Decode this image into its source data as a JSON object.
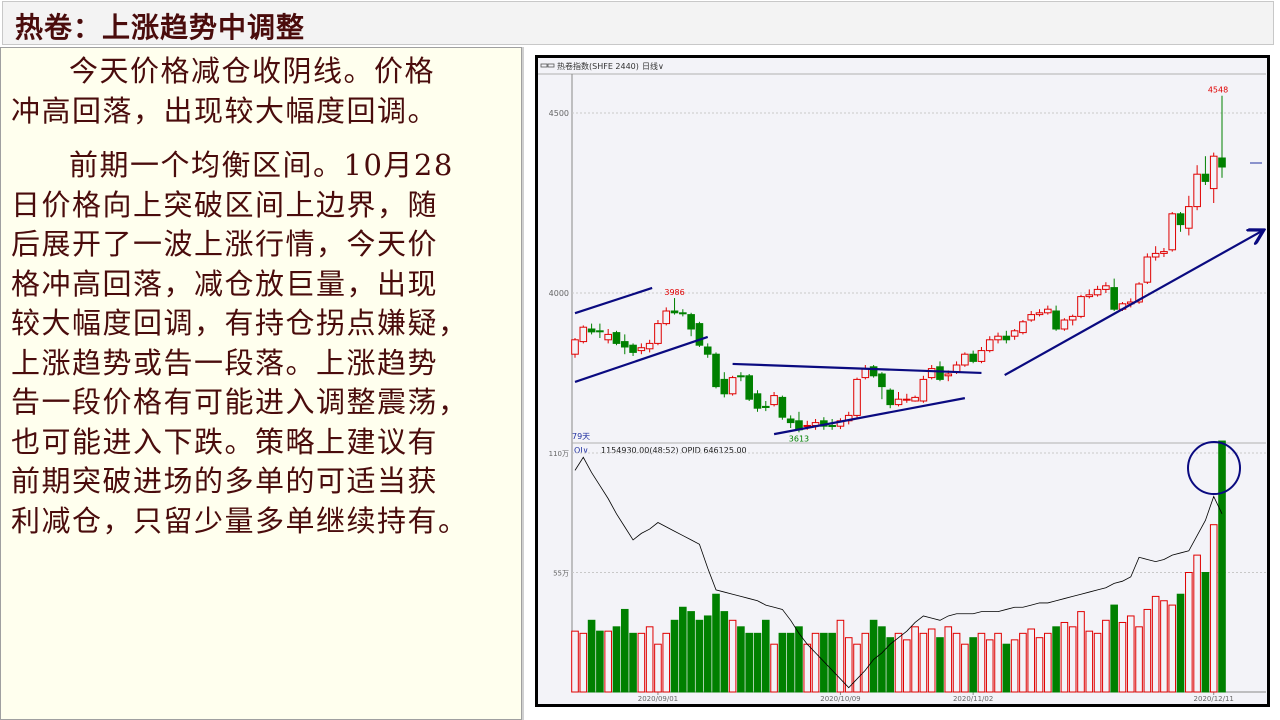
{
  "title": "热卷：上涨趋势中调整",
  "paragraphs": [
    {
      "lines": [
        "今天价格减仓收阴线。价格",
        "冲高回落，出现较大幅度回调。"
      ]
    },
    {
      "lines": [
        "前期一个均衡区间。10月28",
        "日价格向上突破区间上边界，随",
        "后展开了一波上涨行情，今天价",
        "格冲高回落，减仓放巨量，出现",
        "较大幅度回调，有持仓拐点嫌疑，",
        "上涨趋势或告一段落。上涨趋势",
        "告一段价格有可能进入调整震荡，",
        "也可能进入下跌。策略上建议有",
        "前期突破进场的多单的可适当获",
        "利减仓，只留少量多单继续持有。"
      ]
    }
  ],
  "chart_toolbar": {
    "instrument": "热卷指数(SHFE 2440)",
    "period": "日线∨"
  },
  "chart_data": {
    "type": "candlestick",
    "price_axis": {
      "ticks": [
        "4500",
        "4000"
      ],
      "tick_values": [
        4500,
        4000
      ]
    },
    "bar_count_label": "79天",
    "annotations": {
      "high_label": "3986",
      "low_label": "3613",
      "top_label": "4548"
    },
    "ohlc_fields": [
      "open",
      "close",
      "high",
      "low"
    ],
    "candles": [
      [
        3830,
        3870,
        3875,
        3820
      ],
      [
        3865,
        3905,
        3910,
        3860
      ],
      [
        3900,
        3892,
        3915,
        3885
      ],
      [
        3895,
        3893,
        3915,
        3875
      ],
      [
        3870,
        3885,
        3900,
        3860
      ],
      [
        3890,
        3860,
        3895,
        3855
      ],
      [
        3865,
        3850,
        3885,
        3830
      ],
      [
        3855,
        3835,
        3860,
        3825
      ],
      [
        3840,
        3848,
        3860,
        3830
      ],
      [
        3845,
        3860,
        3870,
        3835
      ],
      [
        3860,
        3915,
        3925,
        3855
      ],
      [
        3915,
        3950,
        3960,
        3910
      ],
      [
        3950,
        3945,
        3986,
        3940
      ],
      [
        3945,
        3943,
        3955,
        3935
      ],
      [
        3940,
        3900,
        3945,
        3880
      ],
      [
        3915,
        3855,
        3920,
        3850
      ],
      [
        3850,
        3830,
        3860,
        3820
      ],
      [
        3830,
        3740,
        3835,
        3735
      ],
      [
        3760,
        3720,
        3780,
        3710
      ],
      [
        3720,
        3765,
        3770,
        3715
      ],
      [
        3770,
        3768,
        3780,
        3755
      ],
      [
        3770,
        3705,
        3775,
        3700
      ],
      [
        3720,
        3680,
        3730,
        3670
      ],
      [
        3685,
        3682,
        3700,
        3672
      ],
      [
        3690,
        3715,
        3725,
        3685
      ],
      [
        3710,
        3655,
        3715,
        3648
      ],
      [
        3650,
        3640,
        3660,
        3625
      ],
      [
        3645,
        3620,
        3670,
        3613
      ],
      [
        3630,
        3632,
        3645,
        3620
      ],
      [
        3632,
        3640,
        3650,
        3620
      ],
      [
        3645,
        3630,
        3655,
        3620
      ],
      [
        3632,
        3630,
        3650,
        3620
      ],
      [
        3630,
        3645,
        3652,
        3622
      ],
      [
        3645,
        3660,
        3670,
        3635
      ],
      [
        3660,
        3760,
        3765,
        3650
      ],
      [
        3765,
        3790,
        3800,
        3760
      ],
      [
        3795,
        3770,
        3800,
        3765
      ],
      [
        3775,
        3740,
        3780,
        3705
      ],
      [
        3730,
        3690,
        3735,
        3680
      ],
      [
        3690,
        3705,
        3725,
        3685
      ],
      [
        3705,
        3705,
        3720,
        3695
      ],
      [
        3700,
        3710,
        3715,
        3698
      ],
      [
        3700,
        3760,
        3770,
        3695
      ],
      [
        3765,
        3790,
        3800,
        3760
      ],
      [
        3795,
        3760,
        3810,
        3755
      ],
      [
        3770,
        3775,
        3785,
        3755
      ],
      [
        3780,
        3800,
        3810,
        3775
      ],
      [
        3800,
        3830,
        3835,
        3795
      ],
      [
        3830,
        3810,
        3840,
        3805
      ],
      [
        3810,
        3840,
        3850,
        3805
      ],
      [
        3840,
        3870,
        3880,
        3835
      ],
      [
        3870,
        3880,
        3890,
        3860
      ],
      [
        3880,
        3870,
        3895,
        3860
      ],
      [
        3880,
        3895,
        3900,
        3870
      ],
      [
        3890,
        3920,
        3925,
        3885
      ],
      [
        3925,
        3940,
        3950,
        3920
      ],
      [
        3940,
        3945,
        3955,
        3935
      ],
      [
        3945,
        3955,
        3965,
        3940
      ],
      [
        3950,
        3900,
        3965,
        3895
      ],
      [
        3900,
        3925,
        3930,
        3895
      ],
      [
        3925,
        3935,
        3940,
        3910
      ],
      [
        3935,
        3990,
        3995,
        3930
      ],
      [
        3990,
        3995,
        4010,
        3985
      ],
      [
        3995,
        4010,
        4020,
        3990
      ],
      [
        4010,
        4020,
        4030,
        4000
      ],
      [
        4015,
        3955,
        4040,
        3950
      ],
      [
        3955,
        3970,
        3975,
        3950
      ],
      [
        3970,
        3975,
        3985,
        3960
      ],
      [
        3975,
        4025,
        4030,
        3970
      ],
      [
        4030,
        4100,
        4110,
        4025
      ],
      [
        4100,
        4110,
        4130,
        4090
      ],
      [
        4110,
        4115,
        4125,
        4100
      ],
      [
        4120,
        4220,
        4225,
        4115
      ],
      [
        4220,
        4190,
        4225,
        4170
      ],
      [
        4180,
        4240,
        4270,
        4160
      ],
      [
        4240,
        4330,
        4355,
        4230
      ],
      [
        4330,
        4310,
        4380,
        4300
      ],
      [
        4290,
        4380,
        4390,
        4250
      ],
      [
        4375,
        4350,
        4548,
        4320
      ]
    ],
    "trend_lines": [
      {
        "from": [
          0,
          3944
        ],
        "to": [
          9.3,
          4014
        ]
      },
      {
        "from": [
          0,
          3753
        ],
        "to": [
          16,
          3878
        ]
      },
      {
        "from": [
          19,
          3803
        ],
        "to": [
          49,
          3778
        ]
      },
      {
        "from": [
          24,
          3608
        ],
        "to": [
          47,
          3708
        ]
      },
      {
        "from": [
          51.8,
          3772
        ],
        "to": [
          82.8,
          4172
        ],
        "arrow": true
      }
    ],
    "volume_panel": {
      "indicator": "OI∨",
      "readout": "1154930.00(48:52)  OPID 646125.00",
      "axis_ticks": [
        "110万",
        "55万"
      ],
      "tick_values": [
        110,
        55
      ],
      "unit": "万",
      "volume": [
        28,
        27,
        33,
        28,
        28,
        30,
        38,
        27,
        27,
        30,
        22,
        27,
        33,
        39,
        37,
        33,
        35,
        45,
        37,
        33,
        30,
        27,
        27,
        33,
        22,
        27,
        27,
        30,
        22,
        27,
        27,
        27,
        33,
        25,
        22,
        27,
        33,
        30,
        25,
        27,
        24,
        30,
        27,
        29,
        25,
        30,
        27,
        22,
        25,
        27,
        24,
        27,
        22,
        24,
        27,
        29,
        25,
        27,
        30,
        32,
        30,
        37,
        28,
        27,
        33,
        40,
        32,
        35,
        30,
        38,
        44,
        42,
        40,
        45,
        55,
        63,
        55,
        77,
        115.5
      ],
      "open_interest": [
        102,
        108,
        101,
        95,
        89,
        82,
        76,
        70,
        73,
        75,
        78,
        76,
        74,
        72,
        70,
        68,
        57,
        47,
        46,
        45,
        44,
        43,
        42,
        40,
        39,
        38,
        33,
        27,
        22,
        18,
        14,
        10,
        6,
        2,
        6,
        10,
        15,
        18,
        22,
        25,
        28,
        32,
        35,
        34,
        33,
        35,
        36,
        36,
        36,
        37,
        37,
        37,
        38,
        39,
        39,
        40,
        41,
        41,
        42,
        43,
        44,
        45,
        46,
        47,
        48,
        50,
        51,
        53,
        62,
        61,
        60,
        61,
        63,
        64,
        65,
        72,
        79,
        90,
        82
      ],
      "highlight_circle_on_last_bar": true
    },
    "x_axis": {
      "tick_labels": [
        "2020/09/01",
        "2020/10/09",
        "2020/11/02",
        "2020/12/11"
      ],
      "tick_index": [
        10,
        32,
        48,
        77
      ]
    },
    "colors": {
      "up": "#e00000",
      "down": "#008000",
      "trend_line": "#0a0a80",
      "oi_line": "#000000",
      "background": "#f3f3f8"
    }
  }
}
